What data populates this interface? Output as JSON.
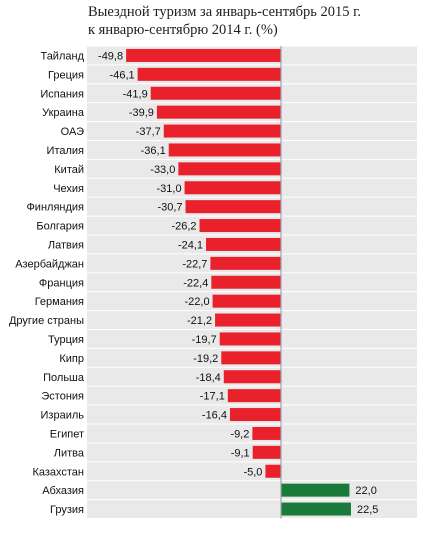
{
  "title_lines": [
    "Выездной туризм за январь-сентябрь 2015 г.",
    "к январю-сентябрю 2014 г. (%)"
  ],
  "colors": {
    "negative": "#e8212b",
    "positive": "#1a7a3a",
    "band": "#e9e9ea",
    "axis": "#a0a4b0"
  },
  "chart_data": {
    "type": "bar",
    "orientation": "horizontal",
    "title": "Выездной туризм за январь-сентябрь 2015 г. к январю-сентябрю 2014 г. (%)",
    "categories": [
      "Тайланд",
      "Греция",
      "Испания",
      "Украина",
      "ОАЭ",
      "Италия",
      "Китай",
      "Чехия",
      "Финляндия",
      "Болгария",
      "Латвия",
      "Азербайджан",
      "Франция",
      "Германия",
      "Другие страны",
      "Турция",
      "Кипр",
      "Польша",
      "Эстония",
      "Израиль",
      "Египет",
      "Литва",
      "Казахстан",
      "Абхазия",
      "Грузия"
    ],
    "values": [
      -49.8,
      -46.1,
      -41.9,
      -39.9,
      -37.7,
      -36.1,
      -33.0,
      -31.0,
      -30.7,
      -26.2,
      -24.1,
      -22.7,
      -22.4,
      -22.0,
      -21.2,
      -19.7,
      -19.2,
      -18.4,
      -17.1,
      -16.4,
      -9.2,
      -9.1,
      -5.0,
      22.0,
      22.5
    ],
    "value_labels": [
      "-49,8",
      "-46,1",
      "-41,9",
      "-39,9",
      "-37,7",
      "-36,1",
      "-33,0",
      "-31,0",
      "-30,7",
      "-26,2",
      "-24,1",
      "-22,7",
      "-22,4",
      "-22,0",
      "-21,2",
      "-19,7",
      "-19,2",
      "-18,4",
      "-17,1",
      "-16,4",
      "-9,2",
      "-9,1",
      "-5,0",
      "22,0",
      "22,5"
    ],
    "xlim": [
      -52,
      25
    ],
    "grid": false,
    "legend": "none"
  }
}
